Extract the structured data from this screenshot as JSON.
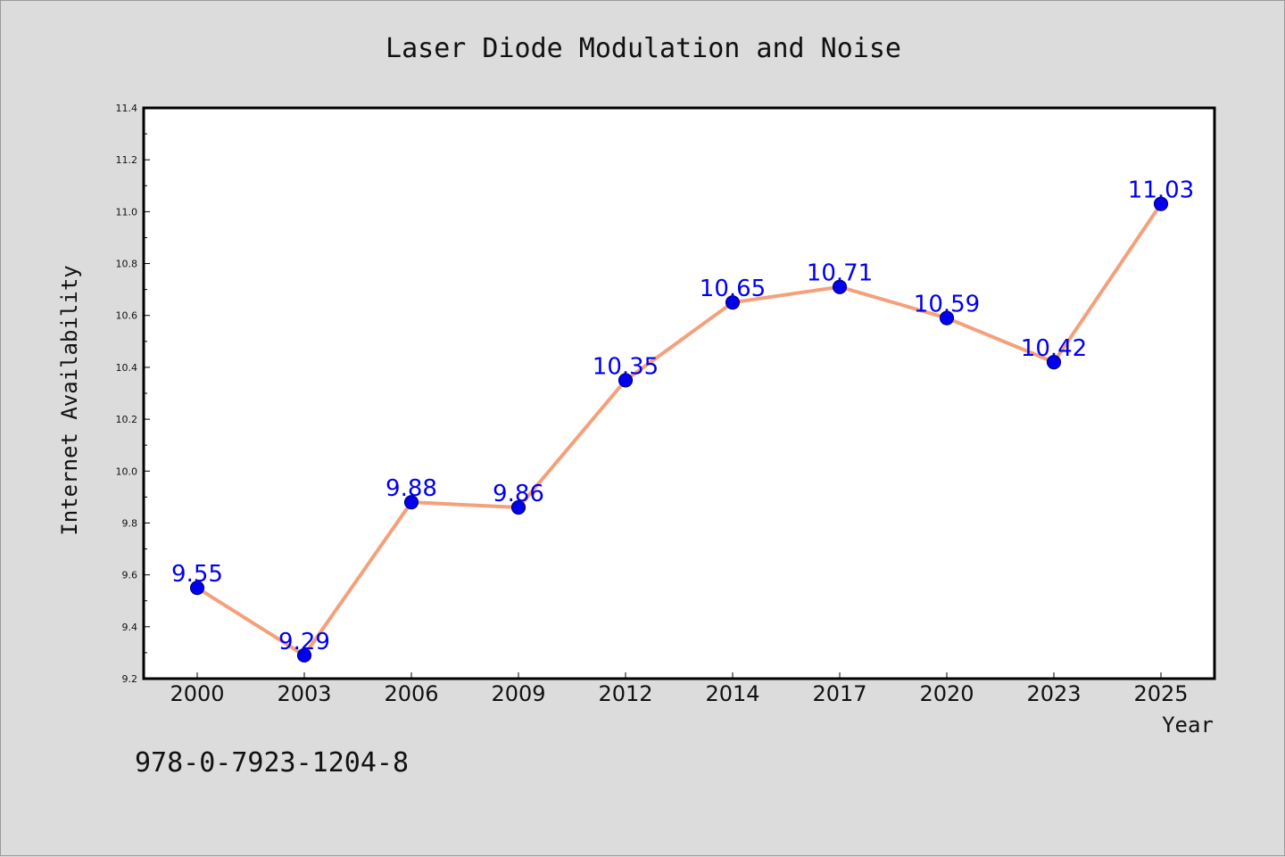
{
  "chart_data": {
    "type": "line",
    "title": "Laser Diode Modulation and Noise",
    "xlabel": "Year",
    "ylabel": "Internet Availability",
    "categories": [
      "2000",
      "2003",
      "2006",
      "2009",
      "2012",
      "2014",
      "2017",
      "2020",
      "2023",
      "2025"
    ],
    "series": [
      {
        "values": [
          9.55,
          9.29,
          9.88,
          9.86,
          10.35,
          10.65,
          10.71,
          10.59,
          10.42,
          11.03
        ]
      }
    ],
    "data_labels": [
      "9.55",
      "9.29",
      "9.88",
      "9.86",
      "10.35",
      "10.65",
      "10.71",
      "10.59",
      "10.42",
      "11.03"
    ],
    "ylim": [
      9.2,
      11.4
    ],
    "yticks": [
      "9.2",
      "9.4",
      "9.6",
      "9.8",
      "10.0",
      "10.2",
      "10.4",
      "10.6",
      "10.8",
      "11.0",
      "11.2",
      "11.4"
    ],
    "grid": false,
    "legend": "none",
    "colors": {
      "line": "#f4a07a",
      "marker": "#0000ee",
      "marker_edge": "#000080",
      "data_label": "#0000ee",
      "plot_bg": "#ffffff",
      "figure_bg": "#dcdcdc"
    }
  },
  "footnote": "978-0-7923-1204-8"
}
